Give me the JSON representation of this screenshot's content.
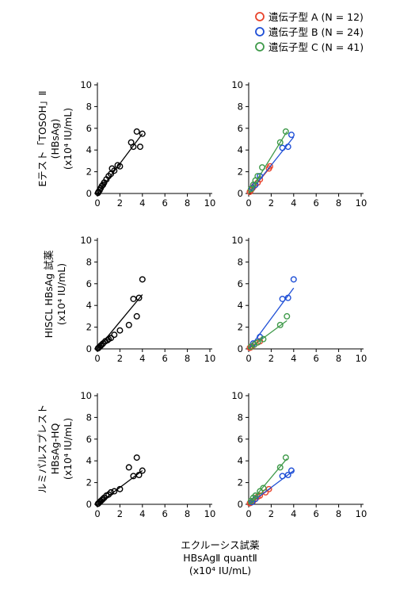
{
  "legend": {
    "entries": [
      {
        "label": "遺伝子型 A (N = 12)",
        "color": "#e8432b"
      },
      {
        "label": "遺伝子型 B (N = 24)",
        "color": "#1f4fd6"
      },
      {
        "label": "遺伝子型 C (N = 41)",
        "color": "#3f9a4a"
      }
    ]
  },
  "row_labels": [
    [
      "Eテスト「TOSOH」Ⅱ",
      "(HBsAg)",
      "(x10⁴ IU/mL)"
    ],
    [
      "HISCL HBsAg 試薬",
      "(x10⁴ IU/mL)"
    ],
    [
      "ルミパルスプレスト",
      "HBsAg-HQ",
      "(x10⁴ IU/mL)"
    ]
  ],
  "x_title": [
    "エクルーシス試薬",
    "HBsAgⅡ quantⅡ",
    "(x10⁴ IU/mL)"
  ],
  "chart_data": [
    {
      "type": "scatter",
      "row": 0,
      "col": 0,
      "xlim": [
        0,
        10
      ],
      "ylim": [
        0,
        10
      ],
      "xticks": [
        0,
        2,
        4,
        6,
        8,
        10
      ],
      "yticks": [
        0,
        2,
        4,
        6,
        8,
        10
      ],
      "series": [
        {
          "color": "#000000",
          "points": [
            [
              0.05,
              0.05
            ],
            [
              0.1,
              0.15
            ],
            [
              0.2,
              0.3
            ],
            [
              0.3,
              0.5
            ],
            [
              0.4,
              0.7
            ],
            [
              0.5,
              0.8
            ],
            [
              0.6,
              1.0
            ],
            [
              0.8,
              1.3
            ],
            [
              1.0,
              1.6
            ],
            [
              1.2,
              1.8
            ],
            [
              1.3,
              2.3
            ],
            [
              1.5,
              2.1
            ],
            [
              1.8,
              2.6
            ],
            [
              2.0,
              2.5
            ],
            [
              3.0,
              4.7
            ],
            [
              3.2,
              4.3
            ],
            [
              3.5,
              5.7
            ],
            [
              3.8,
              4.3
            ],
            [
              4.0,
              5.5
            ]
          ],
          "fit": [
            [
              0,
              0
            ],
            [
              4.0,
              5.5
            ]
          ]
        }
      ]
    },
    {
      "type": "scatter",
      "row": 0,
      "col": 1,
      "xlim": [
        0,
        10
      ],
      "ylim": [
        0,
        10
      ],
      "xticks": [
        0,
        2,
        4,
        6,
        8,
        10
      ],
      "yticks": [
        0,
        2,
        4,
        6,
        8,
        10
      ],
      "series": [
        {
          "name": "遺伝子型 A",
          "color": "#e8432b",
          "points": [
            [
              0.1,
              0.15
            ],
            [
              0.2,
              0.3
            ],
            [
              0.35,
              0.5
            ],
            [
              0.5,
              0.7
            ],
            [
              0.8,
              1.0
            ],
            [
              1.0,
              1.3
            ],
            [
              1.8,
              2.3
            ],
            [
              1.9,
              2.5
            ]
          ],
          "fit": [
            [
              0,
              0
            ],
            [
              2.0,
              2.5
            ]
          ]
        },
        {
          "name": "遺伝子型 B",
          "color": "#1f4fd6",
          "points": [
            [
              0.3,
              0.5
            ],
            [
              0.6,
              0.8
            ],
            [
              1.0,
              1.6
            ],
            [
              3.0,
              4.2
            ],
            [
              3.5,
              4.3
            ],
            [
              3.8,
              5.4
            ]
          ],
          "fit": [
            [
              0,
              0
            ],
            [
              4.0,
              5.2
            ]
          ]
        },
        {
          "name": "遺伝子型 C",
          "color": "#3f9a4a",
          "points": [
            [
              0.2,
              0.4
            ],
            [
              0.4,
              0.8
            ],
            [
              0.6,
              1.2
            ],
            [
              0.8,
              1.6
            ],
            [
              1.2,
              2.4
            ],
            [
              2.8,
              4.7
            ],
            [
              3.3,
              5.7
            ]
          ],
          "fit": [
            [
              0,
              0
            ],
            [
              3.4,
              5.7
            ]
          ]
        }
      ]
    },
    {
      "type": "scatter",
      "row": 1,
      "col": 0,
      "xlim": [
        0,
        10
      ],
      "ylim": [
        0,
        10
      ],
      "xticks": [
        0,
        2,
        4,
        6,
        8,
        10
      ],
      "yticks": [
        0,
        2,
        4,
        6,
        8,
        10
      ],
      "series": [
        {
          "color": "#000000",
          "points": [
            [
              0.05,
              0.05
            ],
            [
              0.1,
              0.1
            ],
            [
              0.2,
              0.2
            ],
            [
              0.3,
              0.3
            ],
            [
              0.4,
              0.4
            ],
            [
              0.5,
              0.5
            ],
            [
              0.7,
              0.7
            ],
            [
              0.9,
              0.8
            ],
            [
              1.0,
              0.9
            ],
            [
              1.2,
              1.0
            ],
            [
              1.5,
              1.3
            ],
            [
              2.0,
              1.7
            ],
            [
              2.8,
              2.2
            ],
            [
              3.2,
              4.6
            ],
            [
              3.5,
              3.0
            ],
            [
              3.7,
              4.7
            ],
            [
              4.0,
              6.4
            ]
          ],
          "fit": [
            [
              0,
              0
            ],
            [
              4.0,
              5.0
            ]
          ]
        }
      ]
    },
    {
      "type": "scatter",
      "row": 1,
      "col": 1,
      "xlim": [
        0,
        10
      ],
      "ylim": [
        0,
        10
      ],
      "xticks": [
        0,
        2,
        4,
        6,
        8,
        10
      ],
      "yticks": [
        0,
        2,
        4,
        6,
        8,
        10
      ],
      "series": [
        {
          "name": "遺伝子型 A",
          "color": "#e8432b",
          "points": [
            [
              0.1,
              0.1
            ],
            [
              0.2,
              0.15
            ],
            [
              0.3,
              0.25
            ],
            [
              0.5,
              0.4
            ],
            [
              0.8,
              0.6
            ],
            [
              1.0,
              0.7
            ]
          ],
          "fit": [
            [
              0,
              0
            ],
            [
              1.0,
              0.8
            ]
          ]
        },
        {
          "name": "遺伝子型 B",
          "color": "#1f4fd6",
          "points": [
            [
              0.4,
              0.5
            ],
            [
              1.0,
              1.1
            ],
            [
              3.0,
              4.6
            ],
            [
              3.5,
              4.7
            ],
            [
              4.0,
              6.4
            ]
          ],
          "fit": [
            [
              0,
              0
            ],
            [
              4.0,
              5.6
            ]
          ]
        },
        {
          "name": "遺伝子型 C",
          "color": "#3f9a4a",
          "points": [
            [
              0.2,
              0.2
            ],
            [
              0.5,
              0.4
            ],
            [
              0.8,
              0.6
            ],
            [
              1.3,
              0.9
            ],
            [
              2.8,
              2.2
            ],
            [
              3.4,
              3.0
            ]
          ],
          "fit": [
            [
              0,
              0
            ],
            [
              3.4,
              2.6
            ]
          ]
        }
      ]
    },
    {
      "type": "scatter",
      "row": 2,
      "col": 0,
      "xlim": [
        0,
        10
      ],
      "ylim": [
        0,
        10
      ],
      "xticks": [
        0,
        2,
        4,
        6,
        8,
        10
      ],
      "yticks": [
        0,
        2,
        4,
        6,
        8,
        10
      ],
      "series": [
        {
          "color": "#000000",
          "points": [
            [
              0.05,
              0.05
            ],
            [
              0.1,
              0.1
            ],
            [
              0.2,
              0.2
            ],
            [
              0.3,
              0.3
            ],
            [
              0.4,
              0.4
            ],
            [
              0.5,
              0.5
            ],
            [
              0.6,
              0.6
            ],
            [
              0.8,
              0.8
            ],
            [
              1.0,
              0.9
            ],
            [
              1.2,
              1.1
            ],
            [
              1.5,
              1.2
            ],
            [
              2.0,
              1.4
            ],
            [
              2.8,
              3.4
            ],
            [
              3.2,
              2.6
            ],
            [
              3.5,
              4.3
            ],
            [
              3.7,
              2.7
            ],
            [
              4.0,
              3.1
            ]
          ],
          "fit": [
            [
              0,
              0
            ],
            [
              4.0,
              3.1
            ]
          ]
        }
      ]
    },
    {
      "type": "scatter",
      "row": 2,
      "col": 1,
      "xlim": [
        0,
        10
      ],
      "ylim": [
        0,
        10
      ],
      "xticks": [
        0,
        2,
        4,
        6,
        8,
        10
      ],
      "yticks": [
        0,
        2,
        4,
        6,
        8,
        10
      ],
      "series": [
        {
          "name": "遺伝子型 A",
          "color": "#e8432b",
          "points": [
            [
              0.1,
              0.1
            ],
            [
              0.2,
              0.15
            ],
            [
              0.4,
              0.3
            ],
            [
              0.6,
              0.5
            ],
            [
              0.8,
              0.7
            ],
            [
              1.0,
              0.8
            ],
            [
              1.5,
              1.1
            ],
            [
              1.8,
              1.4
            ]
          ],
          "fit": [
            [
              0,
              0
            ],
            [
              2.0,
              1.5
            ]
          ]
        },
        {
          "name": "遺伝子型 B",
          "color": "#1f4fd6",
          "points": [
            [
              0.3,
              0.2
            ],
            [
              0.6,
              0.5
            ],
            [
              3.0,
              2.6
            ],
            [
              3.5,
              2.7
            ],
            [
              3.8,
              3.1
            ]
          ],
          "fit": [
            [
              0,
              0
            ],
            [
              4.0,
              3.1
            ]
          ]
        },
        {
          "name": "遺伝子型 C",
          "color": "#3f9a4a",
          "points": [
            [
              0.2,
              0.3
            ],
            [
              0.4,
              0.6
            ],
            [
              0.6,
              0.8
            ],
            [
              1.0,
              1.2
            ],
            [
              1.3,
              1.5
            ],
            [
              2.8,
              3.4
            ],
            [
              3.3,
              4.3
            ]
          ],
          "fit": [
            [
              0,
              0
            ],
            [
              3.4,
              4.2
            ]
          ]
        }
      ]
    }
  ]
}
